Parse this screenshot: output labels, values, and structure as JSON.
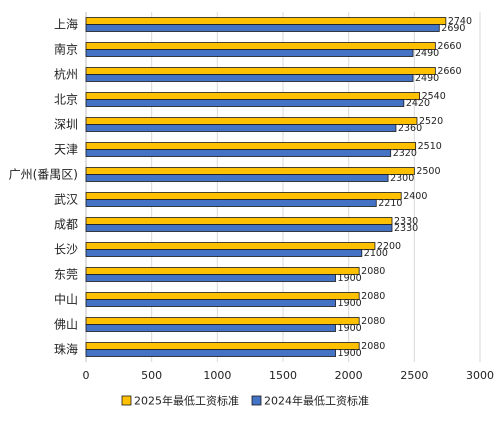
{
  "chart_data": {
    "type": "bar",
    "orientation": "horizontal",
    "categories": [
      "上海",
      "南京",
      "杭州",
      "北京",
      "深圳",
      "天津",
      "广州(番禺区)",
      "武汉",
      "成都",
      "长沙",
      "东莞",
      "中山",
      "佛山",
      "珠海"
    ],
    "series": [
      {
        "name": "2025年最低工资标准",
        "color": "#FFC000",
        "values": [
          2740,
          2660,
          2660,
          2540,
          2520,
          2510,
          2500,
          2400,
          2330,
          2200,
          2080,
          2080,
          2080,
          2080
        ]
      },
      {
        "name": "2024年最低工资标准",
        "color": "#4472C4",
        "values": [
          2690,
          2490,
          2490,
          2420,
          2360,
          2320,
          2300,
          2210,
          2330,
          2100,
          1900,
          1900,
          1900,
          1900
        ]
      }
    ],
    "xlim": [
      0,
      3000
    ],
    "xticks": [
      "0",
      "500",
      "1000",
      "1500",
      "2000",
      "2500",
      "3000"
    ],
    "grid": true,
    "legend_position": "bottom"
  }
}
